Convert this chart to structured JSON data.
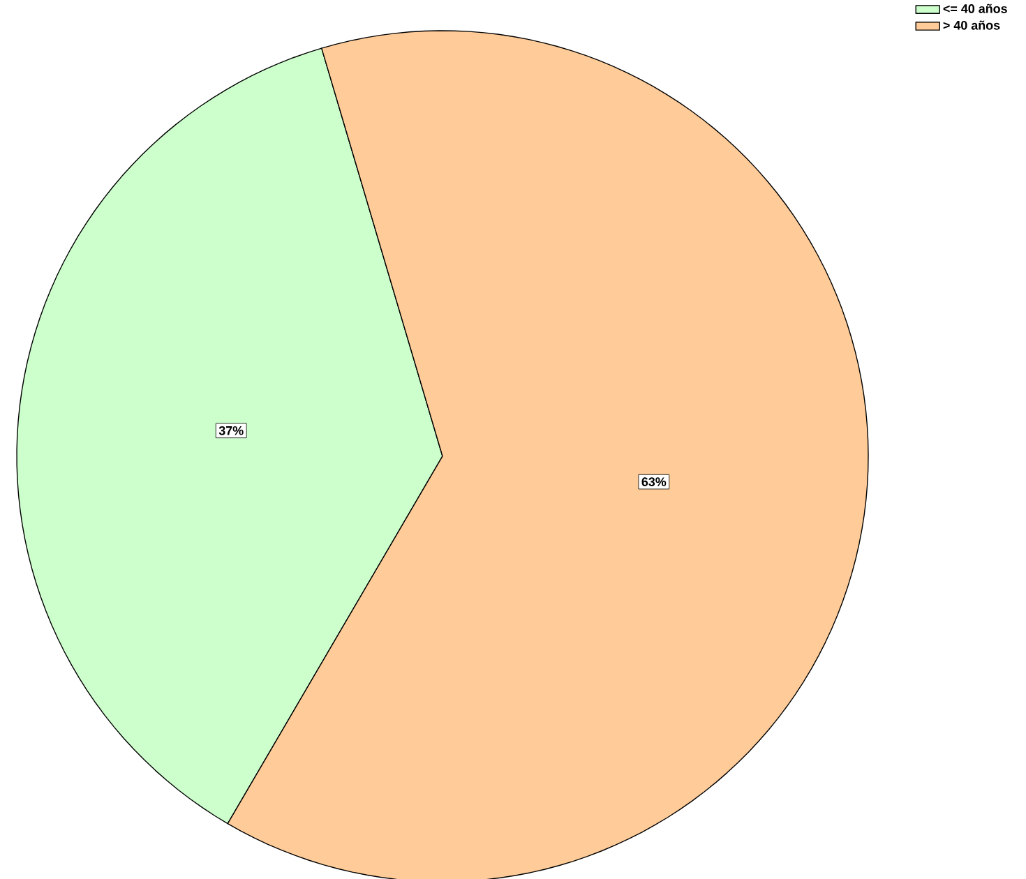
{
  "chart_data": {
    "type": "pie",
    "categories": [
      "<= 40 años",
      "> 40 años"
    ],
    "values": [
      37,
      63
    ],
    "colors": [
      "#ccffcc",
      "#ffcc99"
    ],
    "value_labels": [
      "37%",
      "63%"
    ],
    "legend": "top right"
  }
}
